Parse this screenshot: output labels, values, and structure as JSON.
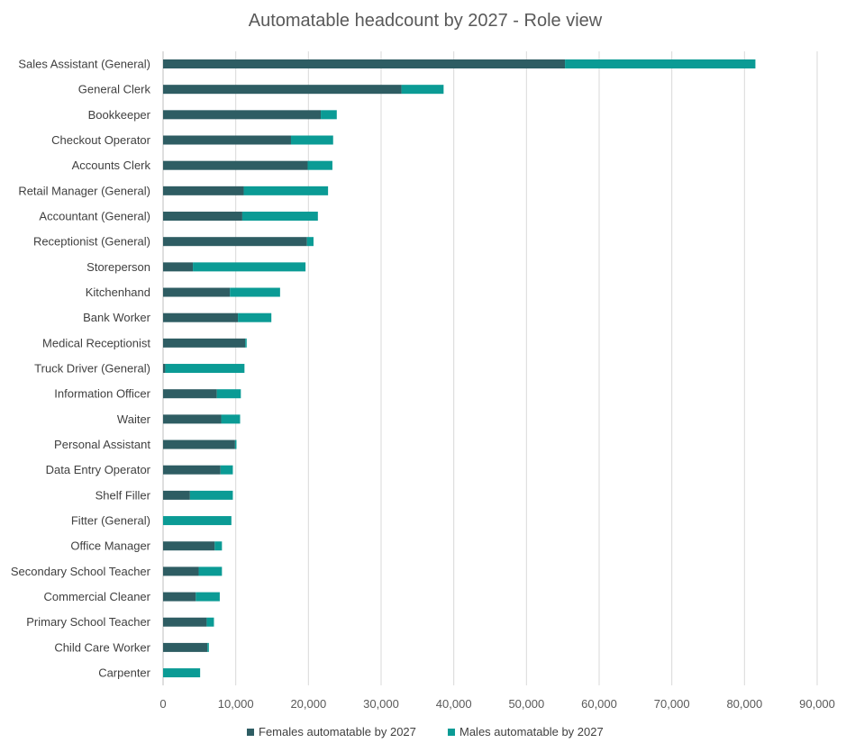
{
  "chart_data": {
    "type": "bar",
    "orientation": "horizontal",
    "stacked": true,
    "title": "Automatable headcount by 2027 - Role view",
    "xlabel": "",
    "ylabel": "",
    "xlim": [
      0,
      90000
    ],
    "x_ticks": [
      0,
      10000,
      20000,
      30000,
      40000,
      50000,
      60000,
      70000,
      80000,
      90000
    ],
    "x_tick_labels": [
      "0",
      "10,000",
      "20,000",
      "30,000",
      "40,000",
      "50,000",
      "60,000",
      "70,000",
      "80,000",
      "90,000"
    ],
    "grid": true,
    "legend_position": "bottom",
    "categories": [
      "Sales Assistant (General)",
      "General Clerk",
      "Bookkeeper",
      "Checkout Operator",
      "Accounts Clerk",
      "Retail Manager (General)",
      "Accountant (General)",
      "Receptionist (General)",
      "Storeperson",
      "Kitchenhand",
      "Bank Worker",
      "Medical Receptionist",
      "Truck Driver (General)",
      "Information Officer",
      "Waiter",
      "Personal Assistant",
      "Data Entry Operator",
      "Shelf Filler",
      "Fitter (General)",
      "Office Manager",
      "Secondary School Teacher",
      "Commercial Cleaner",
      "Primary School Teacher",
      "Child Care Worker",
      "Carpenter"
    ],
    "series": [
      {
        "name": "Females automatable by 2027",
        "color": "#2e5d63",
        "values": [
          55300,
          32800,
          21700,
          17600,
          19900,
          11100,
          10900,
          19800,
          4100,
          9200,
          10300,
          11300,
          300,
          7400,
          8000,
          9900,
          7900,
          3700,
          0,
          7100,
          4900,
          4500,
          6000,
          6100,
          0
        ]
      },
      {
        "name": "Males automatable by 2027",
        "color": "#0b9b95",
        "values": [
          26200,
          5800,
          2200,
          5800,
          3400,
          11600,
          10400,
          900,
          15500,
          6900,
          4600,
          200,
          10900,
          3300,
          2600,
          200,
          1700,
          5900,
          9400,
          1000,
          3200,
          3300,
          1000,
          200,
          5100
        ]
      }
    ]
  }
}
